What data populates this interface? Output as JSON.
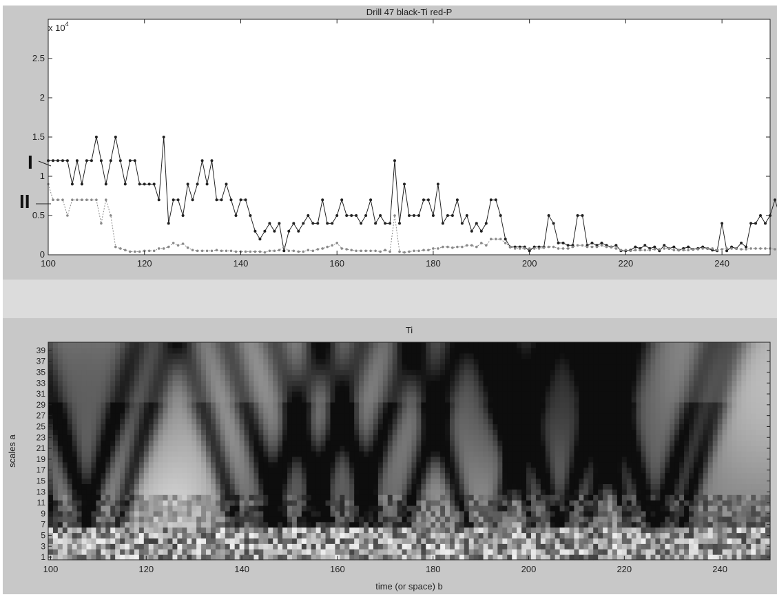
{
  "chart_data": [
    {
      "type": "line",
      "title": "Drill 47 black-Ti red-P",
      "exponent_label": "x 10",
      "exponent_power": "4",
      "xlim": [
        100,
        250
      ],
      "ylim": [
        0,
        30000
      ],
      "x_ticks": [
        100,
        120,
        140,
        160,
        180,
        200,
        220,
        240
      ],
      "y_ticks": [
        0,
        5000,
        10000,
        15000,
        20000,
        25000
      ],
      "y_tick_labels": [
        "0",
        "0.5",
        "1",
        "1.5",
        "2",
        "2.5"
      ],
      "annotations": [
        "I",
        "II"
      ],
      "x_start": 100,
      "x_step": 1,
      "series": [
        {
          "style": "solid-black-dots",
          "color": "#222222",
          "values": [
            12000,
            12000,
            12000,
            12000,
            12000,
            9000,
            12000,
            9000,
            12000,
            12000,
            15000,
            12000,
            9000,
            12000,
            15000,
            12000,
            9000,
            12000,
            12000,
            9000,
            9000,
            9000,
            9000,
            7000,
            15000,
            4000,
            7000,
            7000,
            5000,
            9000,
            7000,
            9000,
            12000,
            9000,
            12000,
            7000,
            7000,
            9000,
            7000,
            5000,
            7000,
            7000,
            5000,
            3000,
            2000,
            3000,
            4000,
            3000,
            4000,
            500,
            3000,
            4000,
            3000,
            4000,
            5000,
            4000,
            4000,
            7000,
            4000,
            4000,
            5000,
            7000,
            5000,
            5000,
            5000,
            4000,
            5000,
            7000,
            4000,
            5000,
            4000,
            4000,
            12000,
            4000,
            9000,
            5000,
            5000,
            5000,
            7000,
            7000,
            5000,
            9000,
            4000,
            5000,
            5000,
            7000,
            4000,
            5000,
            3000,
            4000,
            3000,
            4000,
            7000,
            7000,
            5000,
            2000,
            1000,
            1000,
            1000,
            1000,
            500,
            1000,
            1000,
            1000,
            5000,
            4000,
            1500,
            1500,
            1200,
            1200,
            5000,
            5000,
            1200,
            1500,
            1200,
            1500,
            1200,
            1000,
            1200,
            500,
            500,
            600,
            1000,
            800,
            1200,
            800,
            1000,
            500,
            1200,
            800,
            1000,
            600,
            800,
            1000,
            700,
            800,
            1000,
            800,
            600,
            500,
            4000,
            500,
            1000,
            800,
            1500,
            1000,
            4000,
            4000,
            5000,
            4000,
            5000,
            7000,
            5000,
            7000,
            7000
          ]
        },
        {
          "style": "dotted-gray-dots",
          "color": "#8a8a8a",
          "values": [
            9000,
            7000,
            7000,
            7000,
            5000,
            7000,
            7000,
            7000,
            7000,
            7000,
            7000,
            4000,
            7000,
            5000,
            1000,
            800,
            600,
            400,
            400,
            400,
            500,
            500,
            500,
            800,
            800,
            1000,
            1500,
            1200,
            1400,
            900,
            600,
            500,
            500,
            500,
            500,
            600,
            500,
            500,
            500,
            400,
            400,
            400,
            400,
            400,
            400,
            300,
            500,
            500,
            600,
            1000,
            500,
            500,
            400,
            400,
            600,
            500,
            700,
            800,
            1000,
            1200,
            1500,
            800,
            700,
            600,
            500,
            500,
            500,
            500,
            500,
            400,
            600,
            400,
            5000,
            400,
            300,
            400,
            500,
            500,
            600,
            600,
            800,
            800,
            1000,
            1000,
            900,
            1000,
            1000,
            1200,
            1200,
            1000,
            1500,
            1200,
            2000,
            2000,
            2000,
            1500,
            1000,
            800,
            800,
            800,
            800,
            800,
            800,
            900,
            1000,
            1000,
            800,
            800,
            800,
            1000,
            1200,
            1200,
            1000,
            1000,
            1000,
            1200,
            1000,
            1000,
            800,
            600,
            600,
            500,
            600,
            600,
            600,
            600,
            700,
            700,
            800,
            800,
            600,
            600,
            600,
            600,
            700,
            700,
            800,
            800,
            800,
            600,
            700,
            800,
            800,
            800,
            700,
            700,
            800,
            800,
            800,
            800,
            800,
            700,
            800,
            800
          ]
        }
      ]
    },
    {
      "type": "heatmap",
      "title": "Ti",
      "xlabel": "time (or space) b",
      "ylabel": "scales a",
      "xlim": [
        100,
        250
      ],
      "ylim": [
        1,
        40
      ],
      "x_ticks": [
        100,
        120,
        140,
        160,
        180,
        200,
        220,
        240
      ],
      "y_ticks": [
        1,
        3,
        5,
        7,
        9,
        11,
        13,
        15,
        17,
        19,
        21,
        23,
        25,
        27,
        29,
        31,
        33,
        35,
        37,
        39
      ],
      "colormap": "gray",
      "ridge_events": [
        {
          "center": 104,
          "dark": true
        },
        {
          "center": 111,
          "dark": true
        },
        {
          "center": 127,
          "dark": false
        },
        {
          "center": 142,
          "dark": true
        },
        {
          "center": 151,
          "dark": true
        },
        {
          "center": 161,
          "dark": true
        },
        {
          "center": 171,
          "dark": true
        },
        {
          "center": 190,
          "dark": true
        },
        {
          "center": 204,
          "dark": true
        },
        {
          "center": 209,
          "dark": true
        },
        {
          "center": 224,
          "dark": true
        },
        {
          "center": 229,
          "dark": true
        }
      ]
    }
  ]
}
